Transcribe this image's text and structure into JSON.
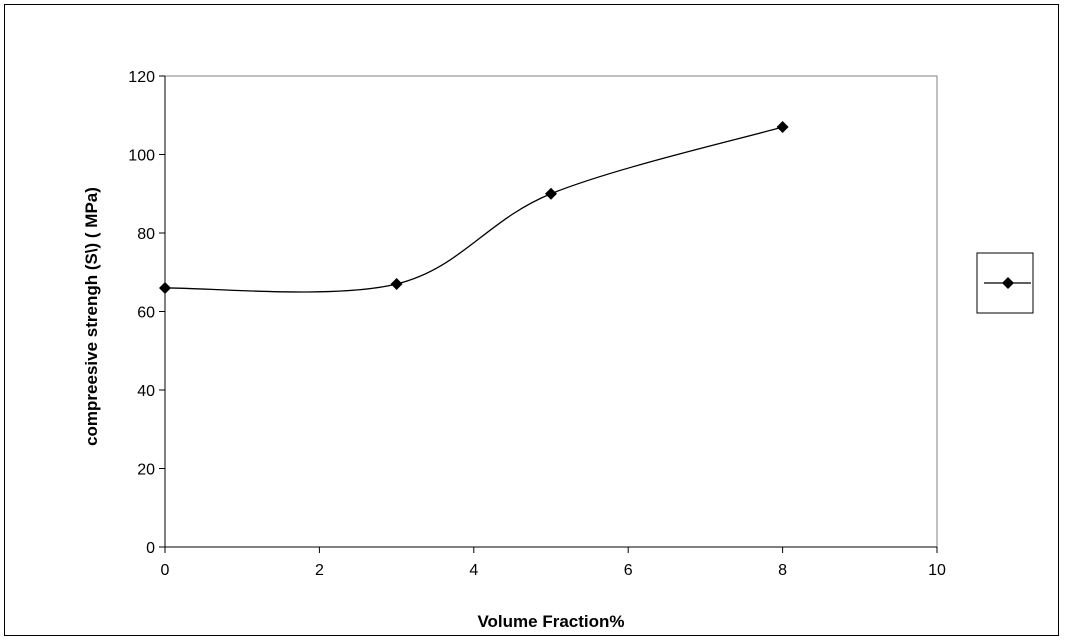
{
  "chart_data": {
    "type": "line",
    "title": "",
    "xlabel": "Volume Fraction%",
    "ylabel": "compreesive strengh (S\\) ( MPa)",
    "xlim": [
      0,
      10
    ],
    "ylim": [
      0,
      120
    ],
    "x_ticks": [
      "0",
      "2",
      "4",
      "6",
      "8",
      "10"
    ],
    "y_ticks": [
      "0",
      "20",
      "40",
      "60",
      "80",
      "100",
      "120"
    ],
    "x_tick_values": [
      0,
      2,
      4,
      6,
      8,
      10
    ],
    "y_tick_values": [
      0,
      20,
      40,
      60,
      80,
      100,
      120
    ],
    "grid": false,
    "legend_position": "right",
    "line_style": "smoothed",
    "series": [
      {
        "x": [
          0,
          3,
          5,
          8
        ],
        "y": [
          66,
          67,
          90,
          107
        ],
        "marker": "diamond",
        "color": "#000000"
      }
    ]
  }
}
